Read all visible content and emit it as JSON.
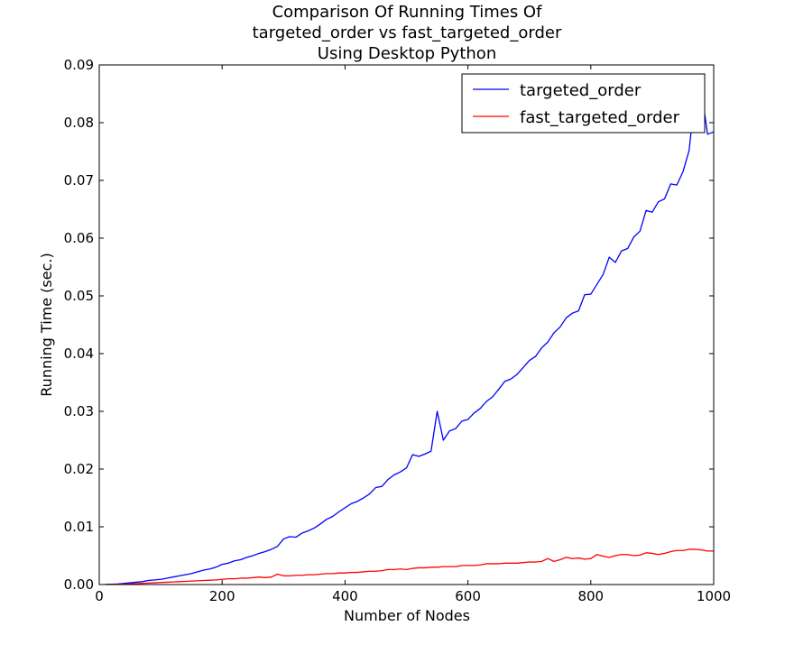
{
  "chart_data": {
    "type": "line",
    "title_lines": [
      "Comparison Of Running Times Of",
      "targeted_order vs fast_targeted_order",
      "Using Desktop Python"
    ],
    "xlabel": "Number of Nodes",
    "ylabel": "Running Time (sec.)",
    "xlim": [
      0,
      1000
    ],
    "ylim": [
      0,
      0.09
    ],
    "x_ticks": [
      0,
      200,
      400,
      600,
      800,
      1000
    ],
    "x_tick_labels": [
      "0",
      "200",
      "400",
      "600",
      "800",
      "1000"
    ],
    "y_ticks": [
      0,
      0.01,
      0.02,
      0.03,
      0.04,
      0.05,
      0.06,
      0.07,
      0.08,
      0.09
    ],
    "y_tick_labels": [
      "0.00",
      "0.01",
      "0.02",
      "0.03",
      "0.04",
      "0.05",
      "0.06",
      "0.07",
      "0.08",
      "0.09"
    ],
    "grid": false,
    "legend_position": "top-right",
    "series": [
      {
        "name": "targeted_order",
        "color": "#0000ff",
        "x": [
          10,
          20,
          30,
          40,
          50,
          60,
          70,
          80,
          90,
          100,
          110,
          120,
          130,
          140,
          150,
          160,
          170,
          180,
          190,
          200,
          210,
          220,
          230,
          240,
          250,
          260,
          270,
          280,
          290,
          300,
          310,
          320,
          330,
          340,
          350,
          360,
          370,
          380,
          390,
          400,
          410,
          420,
          430,
          440,
          450,
          460,
          470,
          480,
          490,
          500,
          510,
          520,
          530,
          540,
          550,
          560,
          570,
          580,
          590,
          600,
          610,
          620,
          630,
          640,
          650,
          660,
          670,
          680,
          690,
          700,
          710,
          720,
          730,
          740,
          750,
          760,
          770,
          780,
          790,
          800,
          810,
          820,
          830,
          840,
          850,
          860,
          870,
          880,
          890,
          900,
          910,
          920,
          930,
          940,
          950,
          960,
          970,
          980,
          990
        ],
        "values": [
          1e-05,
          5e-05,
          0.0001,
          0.0002,
          0.0003,
          0.0004,
          0.0005,
          0.0007,
          0.0008,
          0.0009,
          0.0011,
          0.0013,
          0.0015,
          0.0017,
          0.0019,
          0.0022,
          0.0025,
          0.0027,
          0.003,
          0.0035,
          0.0037,
          0.0041,
          0.0043,
          0.0047,
          0.005,
          0.0054,
          0.0057,
          0.0061,
          0.0066,
          0.0079,
          0.0083,
          0.0082,
          0.0089,
          0.0093,
          0.0098,
          0.0105,
          0.0113,
          0.0118,
          0.0126,
          0.0133,
          0.014,
          0.0144,
          0.015,
          0.0157,
          0.0168,
          0.017,
          0.0182,
          0.019,
          0.0195,
          0.0202,
          0.0225,
          0.0222,
          0.0226,
          0.0231,
          0.03,
          0.025,
          0.0266,
          0.027,
          0.0283,
          0.0286,
          0.0297,
          0.0305,
          0.0317,
          0.0325,
          0.0338,
          0.0352,
          0.0356,
          0.0364,
          0.0376,
          0.0388,
          0.0395,
          0.041,
          0.042,
          0.0436,
          0.0446,
          0.0462,
          0.047,
          0.0474,
          0.0502,
          0.0503,
          0.052,
          0.0537,
          0.0567,
          0.0558,
          0.0578,
          0.0582,
          0.0602,
          0.0612,
          0.0648,
          0.0645,
          0.0663,
          0.0668,
          0.0694,
          0.0692,
          0.0715,
          0.0752,
          0.0851,
          0.0855,
          0.078
        ],
        "extra_point": [
          1000,
          0.0784
        ]
      },
      {
        "name": "fast_targeted_order",
        "color": "#ff0000",
        "x": [
          10,
          20,
          30,
          40,
          50,
          60,
          70,
          80,
          90,
          100,
          110,
          120,
          130,
          140,
          150,
          160,
          170,
          180,
          190,
          200,
          210,
          220,
          230,
          240,
          250,
          260,
          270,
          280,
          290,
          300,
          310,
          320,
          330,
          340,
          350,
          360,
          370,
          380,
          390,
          400,
          410,
          420,
          430,
          440,
          450,
          460,
          470,
          480,
          490,
          500,
          510,
          520,
          530,
          540,
          550,
          560,
          570,
          580,
          590,
          600,
          610,
          620,
          630,
          640,
          650,
          660,
          670,
          680,
          690,
          700,
          710,
          720,
          730,
          740,
          750,
          760,
          770,
          780,
          790,
          800,
          810,
          820,
          830,
          840,
          850,
          860,
          870,
          880,
          890,
          900,
          910,
          920,
          930,
          940,
          950,
          960,
          970,
          980,
          990,
          1000
        ],
        "values": [
          1e-05,
          2e-05,
          4e-05,
          6e-05,
          0.0001,
          0.00015,
          0.0002,
          0.00025,
          0.0003,
          0.00035,
          0.0004,
          0.00045,
          0.0005,
          0.00055,
          0.0006,
          0.00065,
          0.0007,
          0.00075,
          0.0008,
          0.0009,
          0.001,
          0.001,
          0.0011,
          0.0011,
          0.0012,
          0.0013,
          0.0012,
          0.0013,
          0.0018,
          0.0015,
          0.0015,
          0.0016,
          0.0016,
          0.0017,
          0.0017,
          0.0018,
          0.0019,
          0.0019,
          0.002,
          0.002,
          0.0021,
          0.0021,
          0.0022,
          0.0023,
          0.0023,
          0.0024,
          0.0026,
          0.0026,
          0.0027,
          0.0026,
          0.0028,
          0.0029,
          0.0029,
          0.003,
          0.003,
          0.0031,
          0.0031,
          0.0031,
          0.0033,
          0.0033,
          0.0033,
          0.0034,
          0.0036,
          0.0036,
          0.0036,
          0.0037,
          0.0037,
          0.0037,
          0.0038,
          0.0039,
          0.0039,
          0.004,
          0.0045,
          0.004,
          0.0043,
          0.0047,
          0.0045,
          0.0046,
          0.0044,
          0.0045,
          0.0052,
          0.0049,
          0.0047,
          0.005,
          0.0052,
          0.0052,
          0.005,
          0.0051,
          0.0055,
          0.0054,
          0.0052,
          0.0054,
          0.0057,
          0.0059,
          0.0059,
          0.0061,
          0.0061,
          0.006,
          0.0058,
          0.0058
        ]
      }
    ]
  }
}
